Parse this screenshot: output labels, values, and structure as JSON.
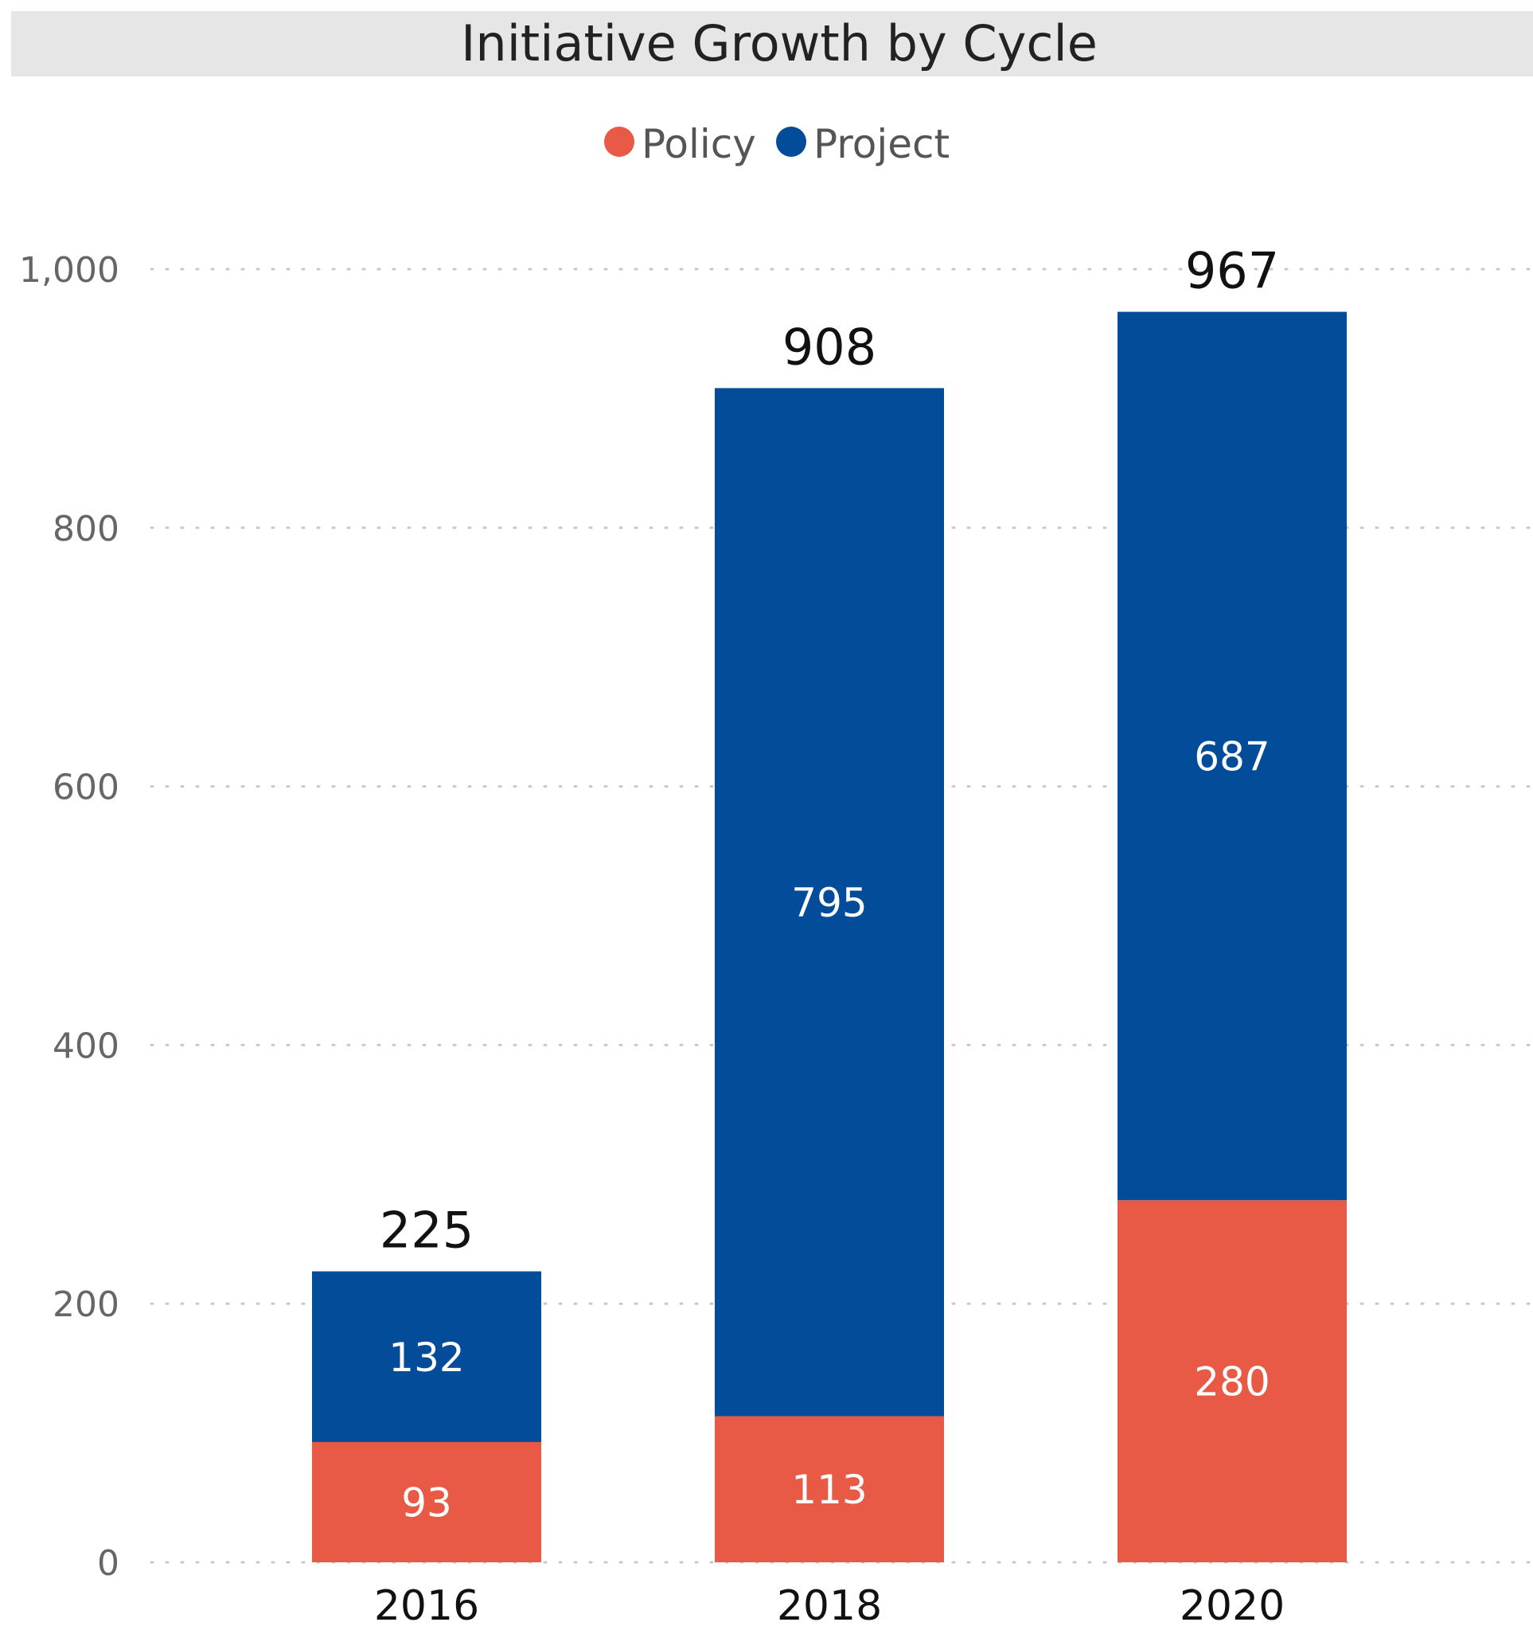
{
  "chart_data": {
    "type": "bar",
    "stacked": true,
    "title": "Initiative Growth by Cycle",
    "categories": [
      "2016",
      "2018",
      "2020"
    ],
    "series": [
      {
        "name": "Policy",
        "color": "#E85A45",
        "values": [
          93,
          113,
          280
        ]
      },
      {
        "name": "Project",
        "color": "#034C9A",
        "values": [
          132,
          795,
          687
        ]
      }
    ],
    "totals": [
      225,
      908,
      967
    ],
    "ylim": [
      0,
      1000
    ],
    "yticks": [
      0,
      200,
      400,
      600,
      800,
      1000
    ],
    "ytick_labels": [
      "0",
      "200",
      "400",
      "600",
      "800",
      "1,000"
    ],
    "grid": true,
    "legend_position": "top-center",
    "title_background": "#E6E6E6",
    "xlabel": "",
    "ylabel": ""
  }
}
